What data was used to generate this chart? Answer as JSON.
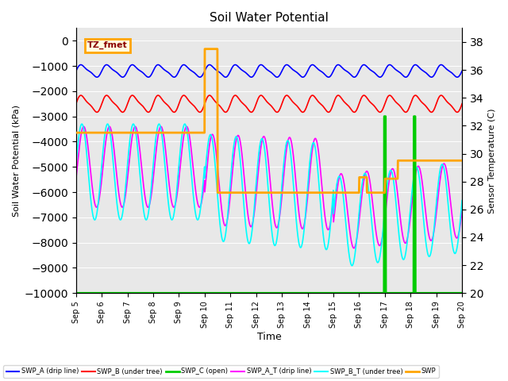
{
  "title": "Soil Water Potential",
  "xlabel": "Time",
  "ylabel_left": "Soil Water Potential (kPa)",
  "ylabel_right": "Sensor Temperature (C)",
  "ylim_left": [
    -10000,
    500
  ],
  "ylim_right": [
    20,
    39
  ],
  "yticks_left": [
    -10000,
    -9000,
    -8000,
    -7000,
    -6000,
    -5000,
    -4000,
    -3000,
    -2000,
    -1000,
    0
  ],
  "yticks_right": [
    20,
    22,
    24,
    26,
    28,
    30,
    32,
    34,
    36,
    38
  ],
  "xtick_labels": [
    "Sep 5",
    "Sep 6",
    "Sep 7",
    "Sep 8",
    "Sep 9",
    "Sep 10",
    "Sep 11",
    "Sep 12",
    "Sep 13",
    "Sep 14",
    "Sep 15",
    "Sep 16",
    "Sep 17",
    "Sep 18",
    "Sep 19",
    "Sep 20"
  ],
  "annotation_text": "TZ_fmet",
  "colors": {
    "SWP_A": "#0000ff",
    "SWP_B": "#ff0000",
    "SWP_C": "#00cc00",
    "SWP_A_T": "#ff00ff",
    "SWP_B_T": "#00ffff",
    "SWP_temp": "#ffa500"
  },
  "legend_labels": [
    "SWP_A (drip line)",
    "SWP_B (under tree)",
    "SWP_C (open)",
    "SWP_A_T (drip line)",
    "SWP_B_T (under tree)",
    "SWP"
  ],
  "plot_bg": "#e8e8e8",
  "figsize": [
    6.4,
    4.8
  ],
  "dpi": 100
}
